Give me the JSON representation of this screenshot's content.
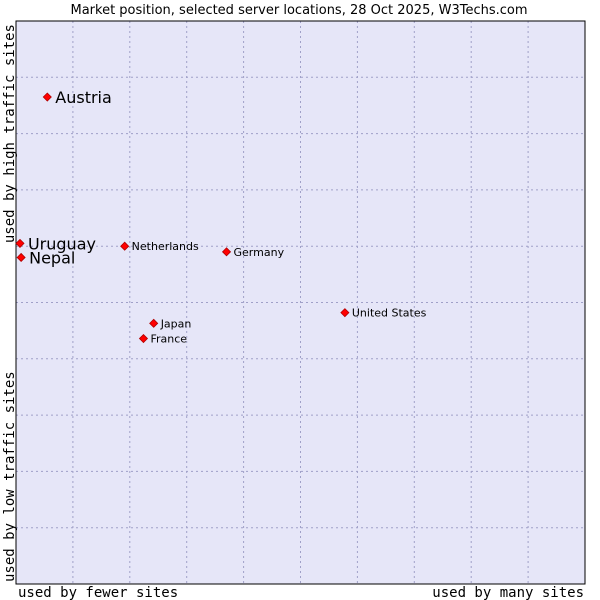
{
  "chart_data": {
    "type": "scatter",
    "title": "Market position, selected server locations, 28 Oct 2025, W3Techs.com",
    "xlabel_left": "used by fewer sites",
    "xlabel_right": "used by many sites",
    "ylabel_bottom": "used by low traffic sites",
    "ylabel_top": "used by high traffic sites",
    "xlim": [
      0,
      100
    ],
    "ylim": [
      0,
      100
    ],
    "grid": true,
    "colors": {
      "plot_bg": "#e6e6f8",
      "grid": "#a0a0c8",
      "marker": "#ff0000",
      "marker_stroke": "#b00000"
    },
    "points": [
      {
        "label": "Austria",
        "x": 5.5,
        "y": 86.5,
        "size": "large"
      },
      {
        "label": "Uruguay",
        "x": 0.7,
        "y": 60.5,
        "size": "large"
      },
      {
        "label": "Nepal",
        "x": 0.9,
        "y": 58.0,
        "size": "large"
      },
      {
        "label": "Netherlands",
        "x": 19.1,
        "y": 60.0,
        "size": "small"
      },
      {
        "label": "Germany",
        "x": 37.0,
        "y": 59.0,
        "size": "small"
      },
      {
        "label": "United States",
        "x": 57.8,
        "y": 48.2,
        "size": "small"
      },
      {
        "label": "Japan",
        "x": 24.2,
        "y": 46.3,
        "size": "small"
      },
      {
        "label": "France",
        "x": 22.4,
        "y": 43.6,
        "size": "small"
      }
    ]
  }
}
